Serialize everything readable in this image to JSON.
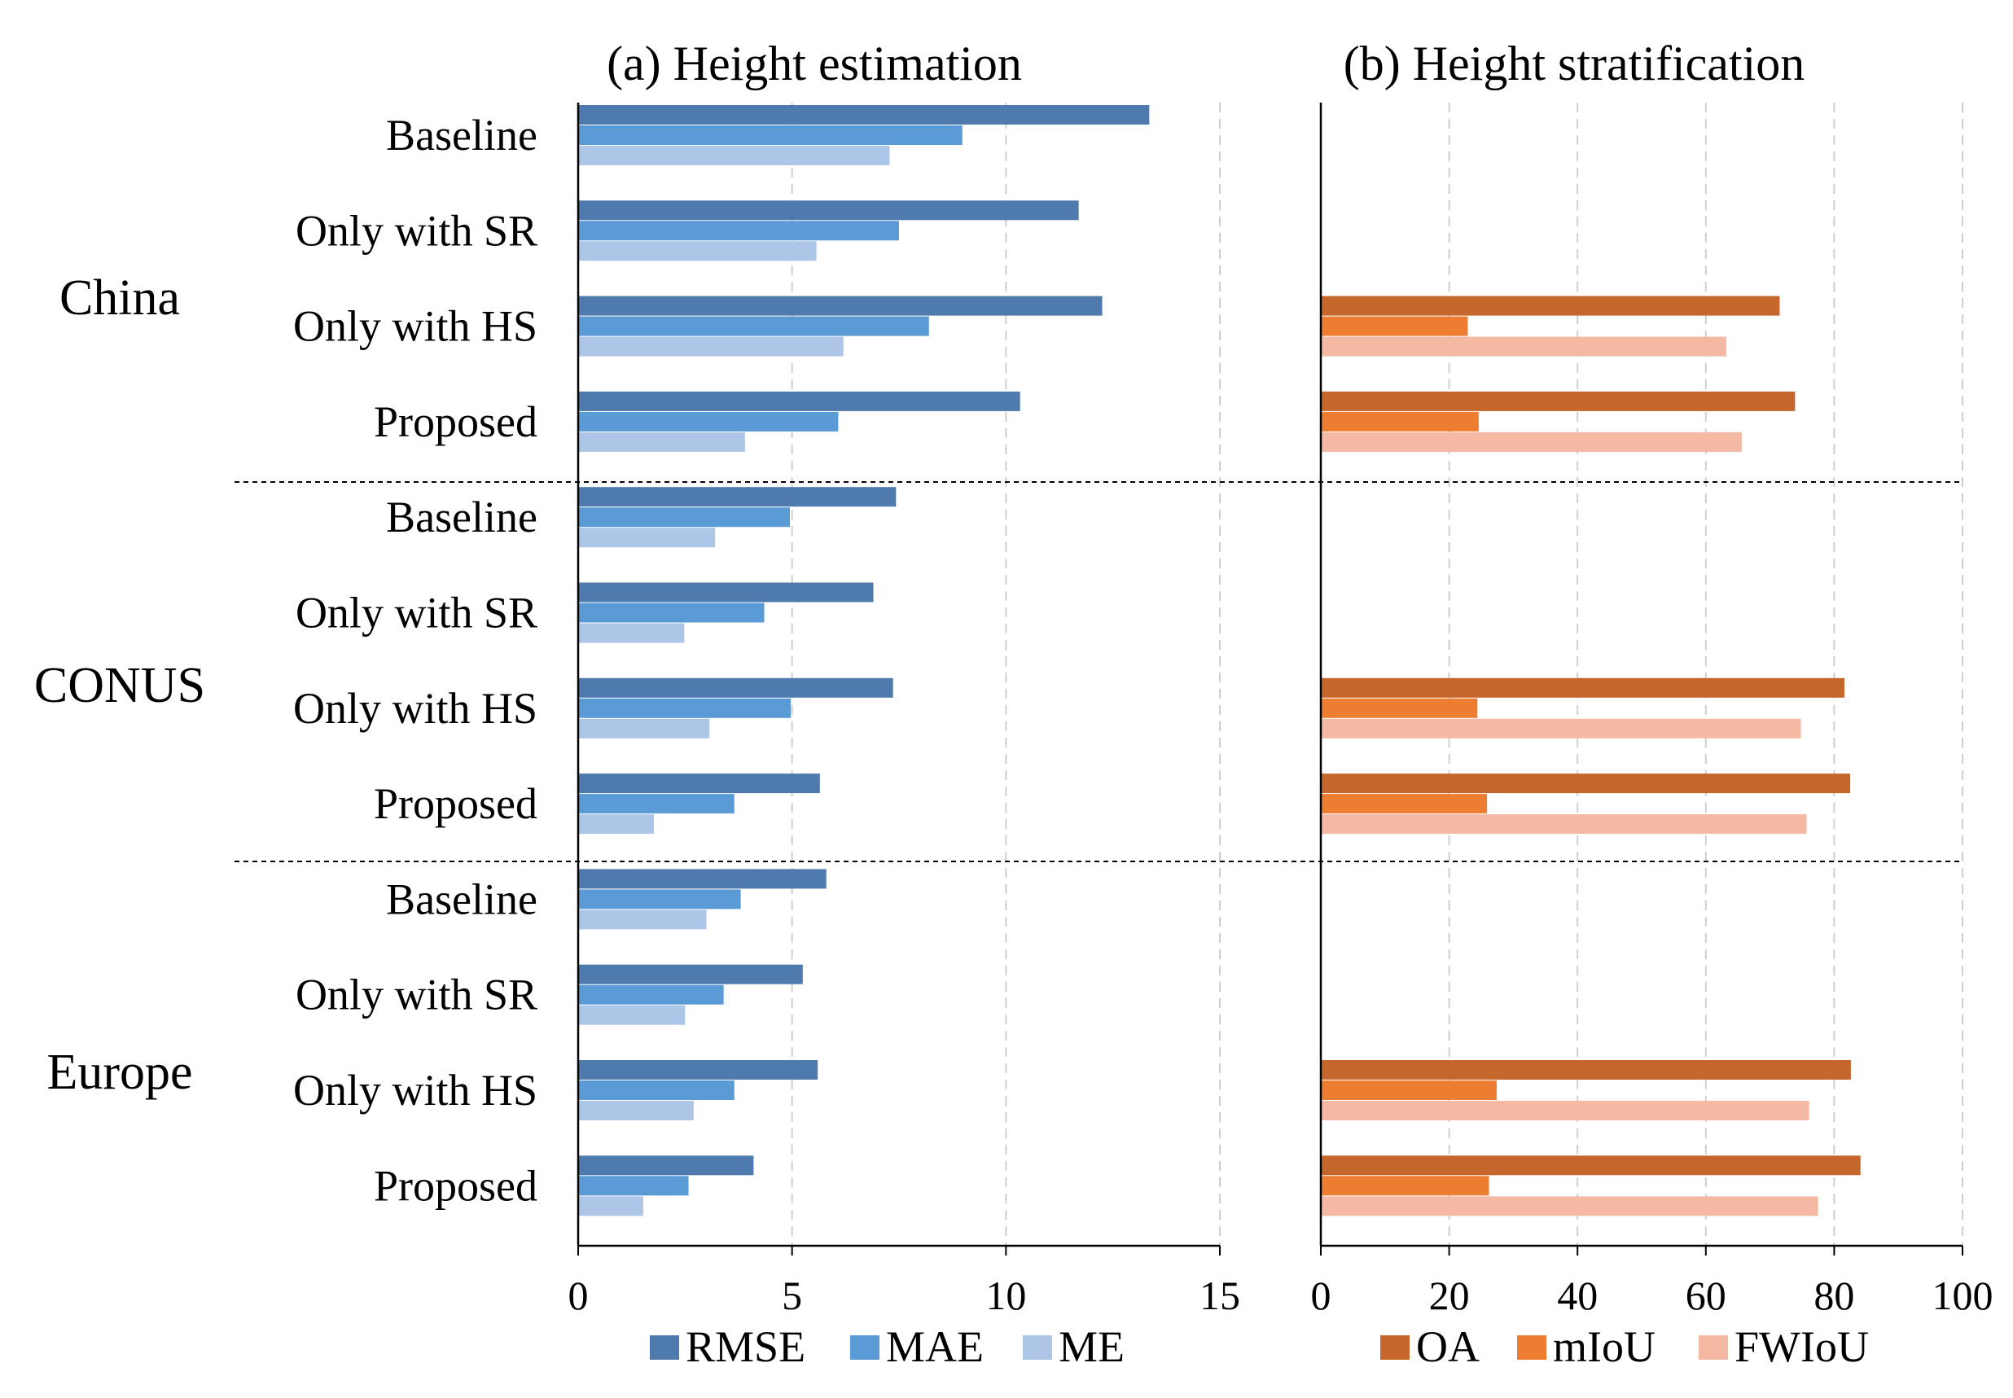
{
  "regions": [
    "China",
    "CONUS",
    "Europe"
  ],
  "methods": [
    "Baseline",
    "Only with SR",
    "Only with HS",
    "Proposed"
  ],
  "chart_data": [
    {
      "type": "bar",
      "orientation": "horizontal",
      "title": "(a) Height estimation",
      "xlim": [
        0,
        15
      ],
      "xticks": [
        "0",
        "5",
        "10",
        "15"
      ],
      "grid": true,
      "legend_position": "bottom",
      "colors": [
        "#4e7aae",
        "#5b9bd5",
        "#adc6e8"
      ],
      "series": [
        {
          "name": "RMSE",
          "values": [
            13.35,
            11.7,
            12.25,
            10.33,
            7.43,
            6.9,
            7.36,
            5.65,
            5.8,
            5.25,
            5.6,
            4.1
          ]
        },
        {
          "name": "MAE",
          "values": [
            8.98,
            7.5,
            8.2,
            6.08,
            4.95,
            4.35,
            4.97,
            3.65,
            3.8,
            3.4,
            3.65,
            2.58
          ]
        },
        {
          "name": "ME",
          "values": [
            7.28,
            5.57,
            6.2,
            3.9,
            3.2,
            2.48,
            3.07,
            1.77,
            3.0,
            2.5,
            2.7,
            1.52
          ]
        }
      ]
    },
    {
      "type": "bar",
      "orientation": "horizontal",
      "title": "(b) Height stratification",
      "xlim": [
        0,
        100
      ],
      "xticks": [
        "0",
        "20",
        "40",
        "60",
        "80",
        "100"
      ],
      "grid": true,
      "legend_position": "bottom",
      "colors": [
        "#c5662d",
        "#ed7d31",
        "#f4b9a2"
      ],
      "series": [
        {
          "name": "OA",
          "values": [
            null,
            null,
            71.5,
            73.9,
            null,
            null,
            81.6,
            82.5,
            null,
            null,
            82.6,
            84.1
          ]
        },
        {
          "name": "mIoU",
          "values": [
            null,
            null,
            22.9,
            24.6,
            null,
            null,
            24.4,
            25.9,
            null,
            null,
            27.4,
            26.2
          ]
        },
        {
          "name": "FWIoU",
          "values": [
            null,
            null,
            63.2,
            65.6,
            null,
            null,
            74.8,
            75.7,
            null,
            null,
            76.1,
            77.5
          ]
        }
      ]
    }
  ]
}
